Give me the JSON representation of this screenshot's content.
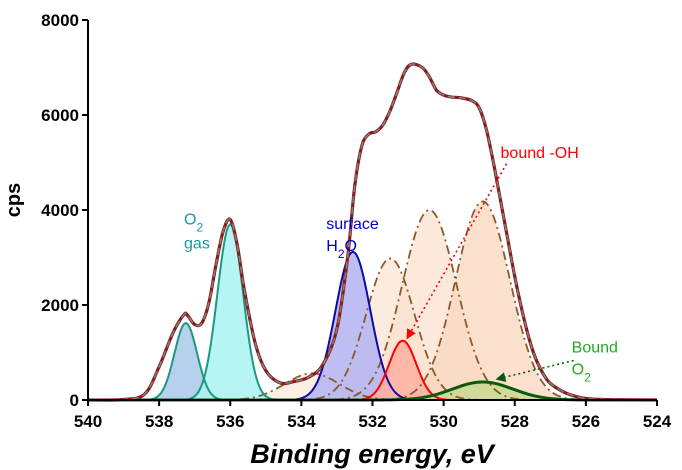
{
  "chart_data": {
    "type": "line",
    "title": "",
    "xlabel": "Binding energy, eV",
    "ylabel": "cps",
    "xlim": [
      540,
      524
    ],
    "ylim": [
      0,
      8000
    ],
    "x_reversed": true,
    "xticks": [
      540,
      538,
      536,
      534,
      532,
      530,
      528,
      526,
      524
    ],
    "yticks": [
      0,
      2000,
      4000,
      6000,
      8000
    ],
    "grid": false,
    "legend": "none",
    "series": [
      {
        "role": "measured",
        "color": "#7f7f7f",
        "x": [
          540,
          539,
          538.4,
          538,
          537.6,
          537.3,
          537.2,
          537,
          536.8,
          536.6,
          536.4,
          536.2,
          536,
          535.8,
          535.6,
          535.3,
          535,
          534.6,
          534.2,
          533.8,
          533.4,
          533,
          532.7,
          532.5,
          532.3,
          532.1,
          531.9,
          531.7,
          531.5,
          531.3,
          531.1,
          530.9,
          530.6,
          530.4,
          530.2,
          530,
          529.8,
          529.5,
          529.2,
          529,
          528.8,
          528.6,
          528.4,
          528.2,
          528,
          527.8,
          527.6,
          527.4,
          527.2,
          527,
          526.6,
          526.2,
          525.8,
          525,
          524
        ],
        "y": [
          0,
          10,
          130,
          700,
          1430,
          1800,
          1780,
          1590,
          1620,
          2050,
          2850,
          3550,
          3800,
          3250,
          2300,
          1200,
          620,
          360,
          390,
          480,
          740,
          1500,
          3000,
          4500,
          5350,
          5600,
          5650,
          5800,
          6100,
          6500,
          6900,
          7070,
          7000,
          6800,
          6520,
          6420,
          6380,
          6360,
          6300,
          6150,
          5700,
          5000,
          4200,
          3400,
          2600,
          1900,
          1300,
          850,
          550,
          350,
          160,
          60,
          20,
          5,
          0
        ]
      },
      {
        "role": "fit-envelope",
        "color": "#8b1a1a",
        "x": [
          540,
          539,
          538.4,
          538,
          537.6,
          537.3,
          537.2,
          537,
          536.8,
          536.6,
          536.4,
          536.2,
          536,
          535.8,
          535.6,
          535.3,
          535,
          534.6,
          534.2,
          533.8,
          533.4,
          533,
          532.7,
          532.5,
          532.3,
          532.1,
          531.9,
          531.7,
          531.5,
          531.3,
          531.1,
          530.9,
          530.6,
          530.4,
          530.2,
          530,
          529.8,
          529.5,
          529.2,
          529,
          528.8,
          528.6,
          528.4,
          528.2,
          528,
          527.8,
          527.6,
          527.4,
          527.2,
          527,
          526.6,
          526.2,
          525.8,
          525,
          524
        ],
        "y": [
          0,
          10,
          130,
          700,
          1430,
          1800,
          1780,
          1590,
          1620,
          2050,
          2850,
          3550,
          3800,
          3250,
          2300,
          1200,
          620,
          360,
          390,
          480,
          740,
          1500,
          3000,
          4500,
          5350,
          5600,
          5650,
          5800,
          6100,
          6500,
          6900,
          7070,
          7000,
          6800,
          6520,
          6420,
          6380,
          6360,
          6300,
          6150,
          5700,
          5000,
          4200,
          3400,
          2600,
          1900,
          1300,
          850,
          550,
          350,
          160,
          60,
          20,
          5,
          0
        ]
      },
      {
        "role": "O2-gas-peak-1",
        "center": 537.25,
        "amplitude": 1620,
        "fwhm": 0.75,
        "color": "#1a9a82",
        "fill": "#a9c8ea"
      },
      {
        "role": "O2-gas-peak-2",
        "center": 536.0,
        "amplitude": 3700,
        "fwhm": 0.85,
        "color": "#1a9a82",
        "fill": "#aaf3f3"
      },
      {
        "role": "surface-H2O-peak",
        "center": 532.55,
        "amplitude": 3120,
        "fwhm": 1.15,
        "color": "#0c0ca0",
        "fill": "#b3b3f2"
      },
      {
        "role": "bound-OH-peak",
        "center": 531.15,
        "amplitude": 1250,
        "fwhm": 0.9,
        "color": "#ff0000",
        "fill": "#ffb0a0"
      },
      {
        "role": "bound-O2-peak",
        "center": 528.9,
        "amplitude": 380,
        "fwhm": 2.0,
        "color": "#0a5a0a",
        "fill": "#c8d890"
      },
      {
        "role": "component-dashdot-1",
        "center": 533.7,
        "amplitude": 560,
        "fwhm": 1.8,
        "color": "#8b5a2b",
        "fill": "#fbe9da"
      },
      {
        "role": "component-dashdot-2",
        "center": 531.5,
        "amplitude": 2980,
        "fwhm": 1.6,
        "color": "#8b5a2b",
        "fill": "#fbe4d4"
      },
      {
        "role": "component-dashdot-3",
        "center": 530.4,
        "amplitude": 4000,
        "fwhm": 1.8,
        "color": "#8b5a2b",
        "fill": "#fbe2cf"
      },
      {
        "role": "component-dashdot-4",
        "center": 528.9,
        "amplitude": 4180,
        "fwhm": 1.8,
        "color": "#8b5a2b",
        "fill": "#f9d6bd"
      }
    ],
    "annotations": [
      {
        "id": "o2-gas",
        "line1": "O",
        "sub": "2",
        "line2": "gas",
        "color": "#1a9a9a",
        "at_x": 537.3,
        "at_y": 3700
      },
      {
        "id": "surface-h2o",
        "line1": "surface",
        "line2": "H",
        "sub": "2",
        "line2_tail": "O",
        "color": "#0000cc",
        "at_x": 533.3,
        "at_y": 3600
      },
      {
        "id": "bound-oh",
        "text": "bound -OH",
        "color": "#ff0000",
        "at_x": 528.4,
        "at_y": 5100,
        "arrow_to_x": 531.1,
        "arrow_to_y": 1250
      },
      {
        "id": "bound-o2",
        "line1": "Bound",
        "line2": "O",
        "sub": "2",
        "color": "#22aa22",
        "at_x": 526.4,
        "at_y": 1000,
        "arrow_to_x": 528.6,
        "arrow_to_y": 400
      }
    ]
  }
}
